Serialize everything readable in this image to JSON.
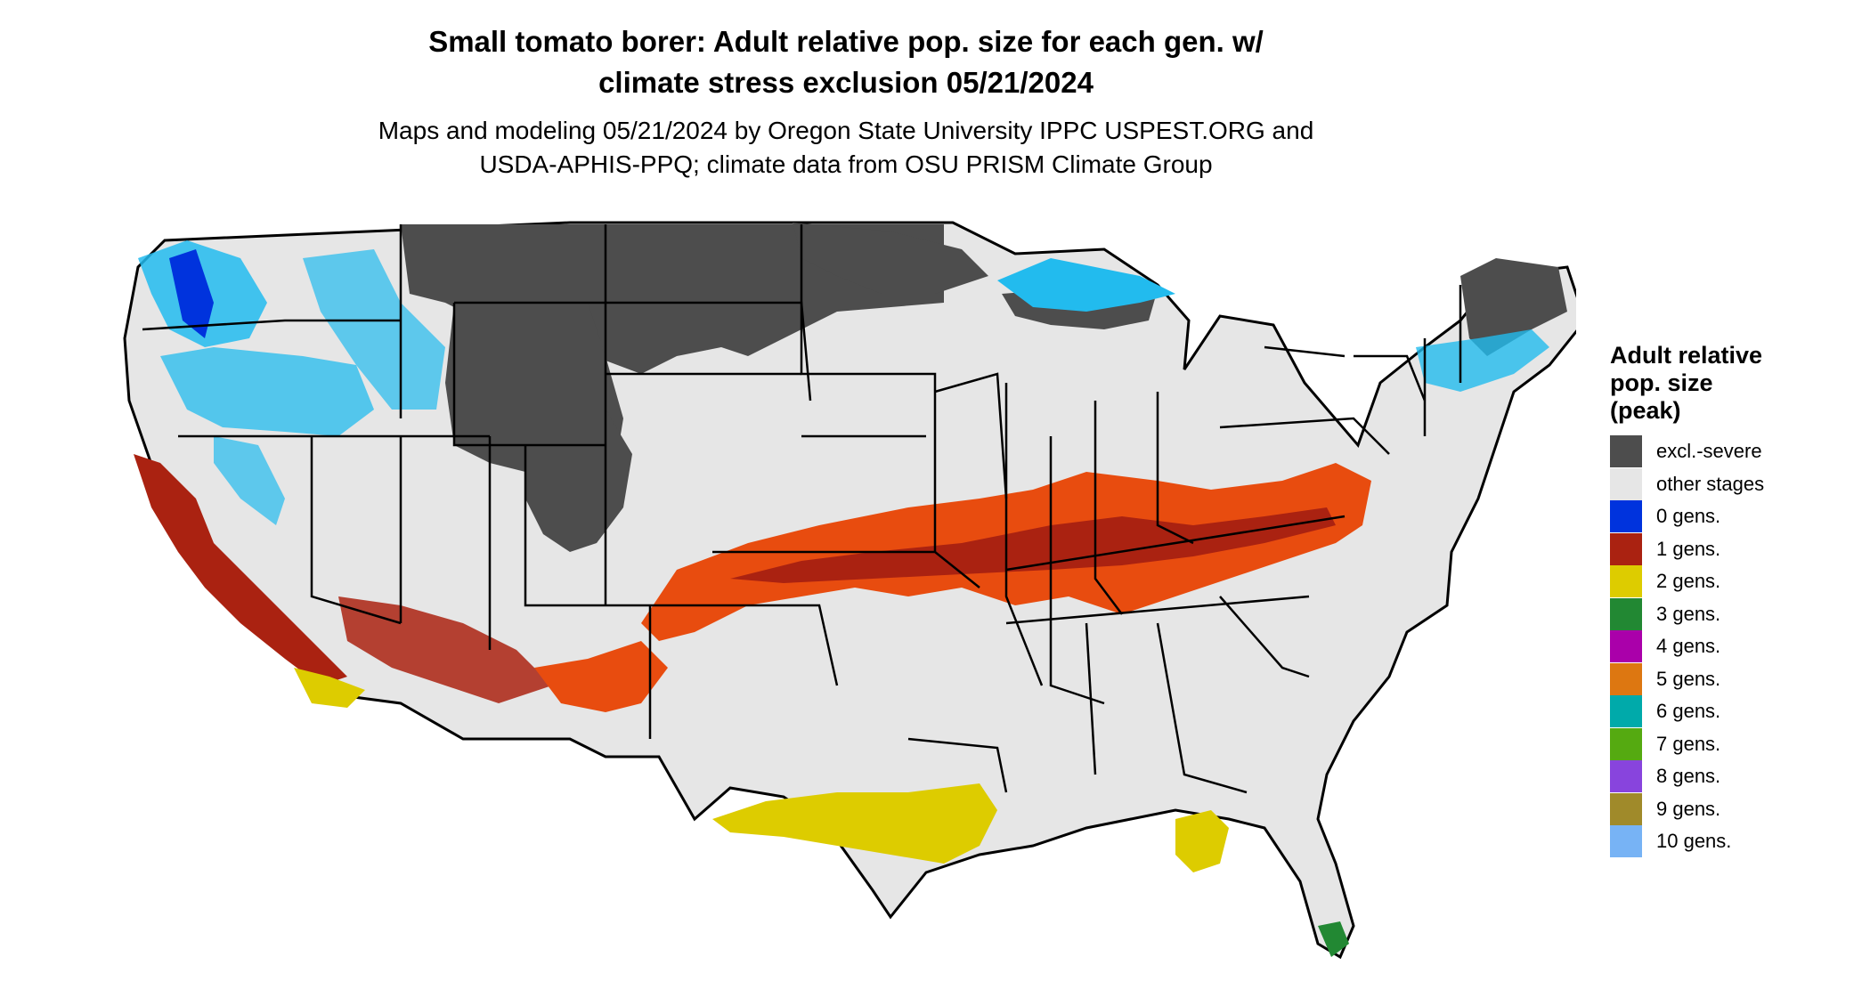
{
  "title": {
    "line1": "Small tomato borer: Adult relative pop. size for each gen. w/",
    "line2": "climate stress exclusion 05/21/2024"
  },
  "subtitle": {
    "line1": "Maps and modeling 05/21/2024 by Oregon State University IPPC USPEST.ORG and",
    "line2": "USDA-APHIS-PPQ; climate data from OSU PRISM Climate Group"
  },
  "legend": {
    "title_lines": [
      "Adult relative",
      "pop. size",
      "(peak)"
    ],
    "items": [
      {
        "label": "excl.-severe",
        "color": "#4d4d4d"
      },
      {
        "label": "other stages",
        "color": "#e6e6e6"
      },
      {
        "label": "0 gens.",
        "color": "#0033dd"
      },
      {
        "label": "1 gens.",
        "color": "#aa2211"
      },
      {
        "label": "2 gens.",
        "color": "#ddcc00"
      },
      {
        "label": "3 gens.",
        "color": "#228833"
      },
      {
        "label": "4 gens.",
        "color": "#aa00aa"
      },
      {
        "label": "5 gens.",
        "color": "#dd7711"
      },
      {
        "label": "6 gens.",
        "color": "#00aaaa"
      },
      {
        "label": "7 gens.",
        "color": "#55aa11"
      },
      {
        "label": "8 gens.",
        "color": "#8844dd"
      },
      {
        "label": "9 gens.",
        "color": "#a08a2a"
      },
      {
        "label": "10 gens.",
        "color": "#77b3f5"
      }
    ]
  },
  "map_colors": {
    "land": "#e6e6e6",
    "excluded": "#4d4d4d",
    "cold_zone": "#22bbee",
    "zero_gens": "#0033dd",
    "one_gen_orange": "#e84c0f",
    "one_gen_dark": "#aa2211",
    "two_gens": "#ddcc00",
    "three_gens": "#228833",
    "boundary": "#000000"
  }
}
